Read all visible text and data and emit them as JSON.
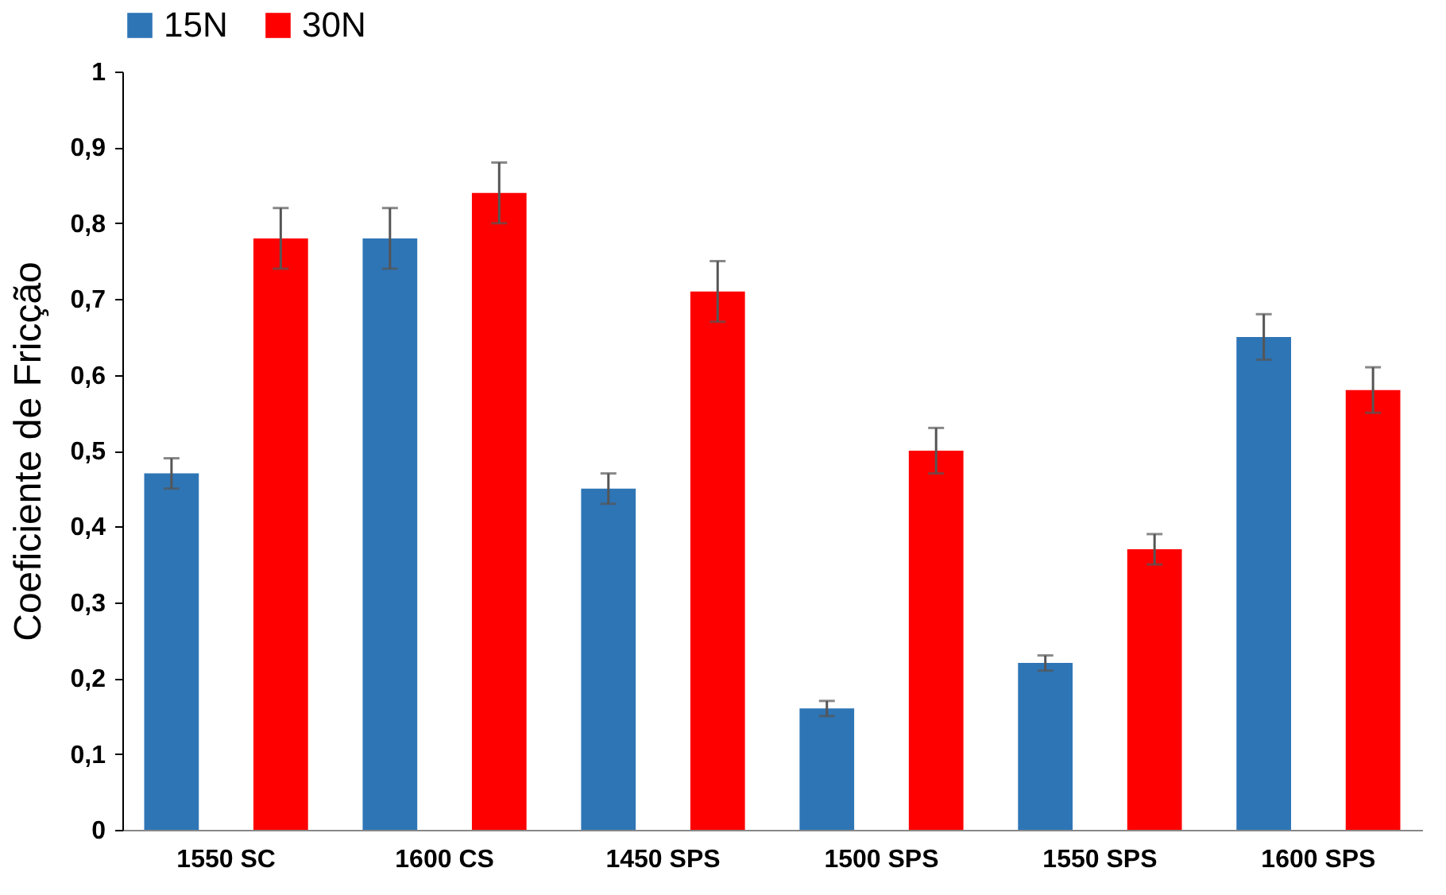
{
  "chart_data": {
    "type": "bar",
    "ylabel": "Coeficiente de Fricção",
    "categories": [
      "1550 SC",
      "1600 CS",
      "1450 SPS",
      "1500 SPS",
      "1550 SPS",
      "1600 SPS"
    ],
    "series": [
      {
        "name": "15N",
        "color": "#2e75b6",
        "values": [
          0.47,
          0.78,
          0.45,
          0.16,
          0.22,
          0.65
        ],
        "errors": [
          0.02,
          0.04,
          0.02,
          0.01,
          0.01,
          0.03
        ]
      },
      {
        "name": "30N",
        "color": "#ff0000",
        "values": [
          0.78,
          0.84,
          0.71,
          0.5,
          0.37,
          0.58
        ],
        "errors": [
          0.04,
          0.04,
          0.04,
          0.03,
          0.02,
          0.03
        ]
      }
    ],
    "ylim": [
      0,
      1
    ],
    "yticks": [
      0,
      {
        "value": 0.1,
        "label": "0,1"
      },
      {
        "value": 0.2,
        "label": "0,2"
      },
      {
        "value": 0.3,
        "label": "0,3"
      },
      {
        "value": 0.4,
        "label": "0,4"
      },
      {
        "value": 0.5,
        "label": "0,5"
      },
      {
        "value": 0.6,
        "label": "0,6"
      },
      {
        "value": 0.7,
        "label": "0,7"
      },
      {
        "value": 0.8,
        "label": "0,8"
      },
      {
        "value": 0.9,
        "label": "0,9"
      },
      1
    ],
    "grid": false,
    "legend": "top"
  }
}
